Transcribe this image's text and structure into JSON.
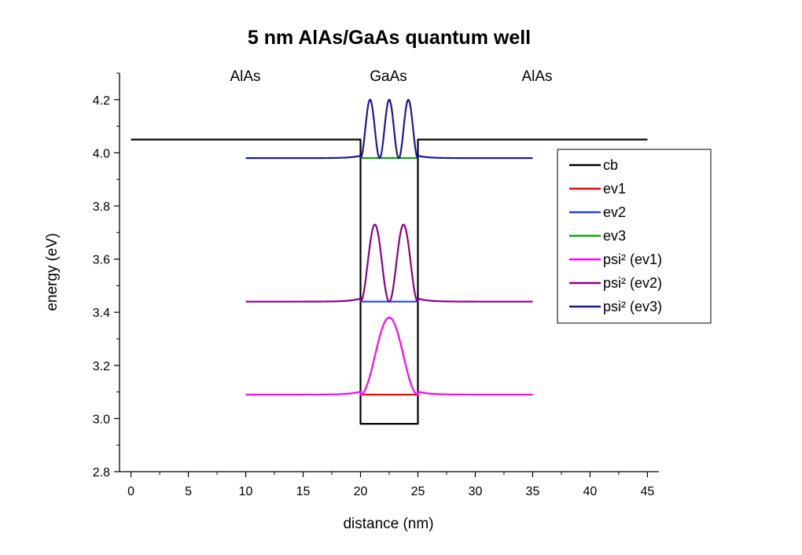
{
  "chart_data": {
    "type": "line",
    "title": "5 nm AlAs/GaAs quantum well",
    "xlabel": "distance (nm)",
    "ylabel": "energy (eV)",
    "xlim": [
      -1,
      46
    ],
    "ylim": [
      2.8,
      4.3
    ],
    "xticks": [
      "0",
      "5",
      "10",
      "15",
      "20",
      "25",
      "30",
      "35",
      "40",
      "45"
    ],
    "yticks": [
      "2.8",
      "3.0",
      "3.2",
      "3.4",
      "3.6",
      "3.8",
      "4.0",
      "4.2"
    ],
    "regions": [
      {
        "label": "AlAs",
        "x": 10
      },
      {
        "label": "GaAs",
        "x": 22.5
      },
      {
        "label": "AlAs",
        "x": 35
      }
    ],
    "legend_position": "right",
    "series": [
      {
        "name": "cb",
        "color": "#000000",
        "points": [
          [
            0,
            4.05
          ],
          [
            20,
            4.05
          ],
          [
            20,
            2.98
          ],
          [
            25,
            2.98
          ],
          [
            25,
            4.05
          ],
          [
            45,
            4.05
          ]
        ]
      },
      {
        "name": "ev1",
        "color": "#ff0000",
        "points": [
          [
            20,
            3.09
          ],
          [
            25,
            3.09
          ]
        ]
      },
      {
        "name": "ev2",
        "color": "#2040ff",
        "points": [
          [
            20,
            3.44
          ],
          [
            25,
            3.44
          ]
        ]
      },
      {
        "name": "ev3",
        "color": "#10a010",
        "points": [
          [
            20,
            3.98
          ],
          [
            25,
            3.98
          ]
        ]
      },
      {
        "name": "psi² (ev1)",
        "color": "#ff00ff",
        "baseline": 3.09,
        "peak_height": 0.29,
        "lobes": 1,
        "x_range": [
          10,
          35
        ]
      },
      {
        "name": "psi² (ev2)",
        "color": "#8a008a",
        "baseline": 3.44,
        "peak_height": 0.29,
        "lobes": 2,
        "x_range": [
          10,
          35
        ]
      },
      {
        "name": "psi² (ev3)",
        "color": "#1a1a9a",
        "baseline": 3.98,
        "peak_height": 0.22,
        "lobes": 3,
        "x_range": [
          10,
          35
        ]
      }
    ]
  }
}
